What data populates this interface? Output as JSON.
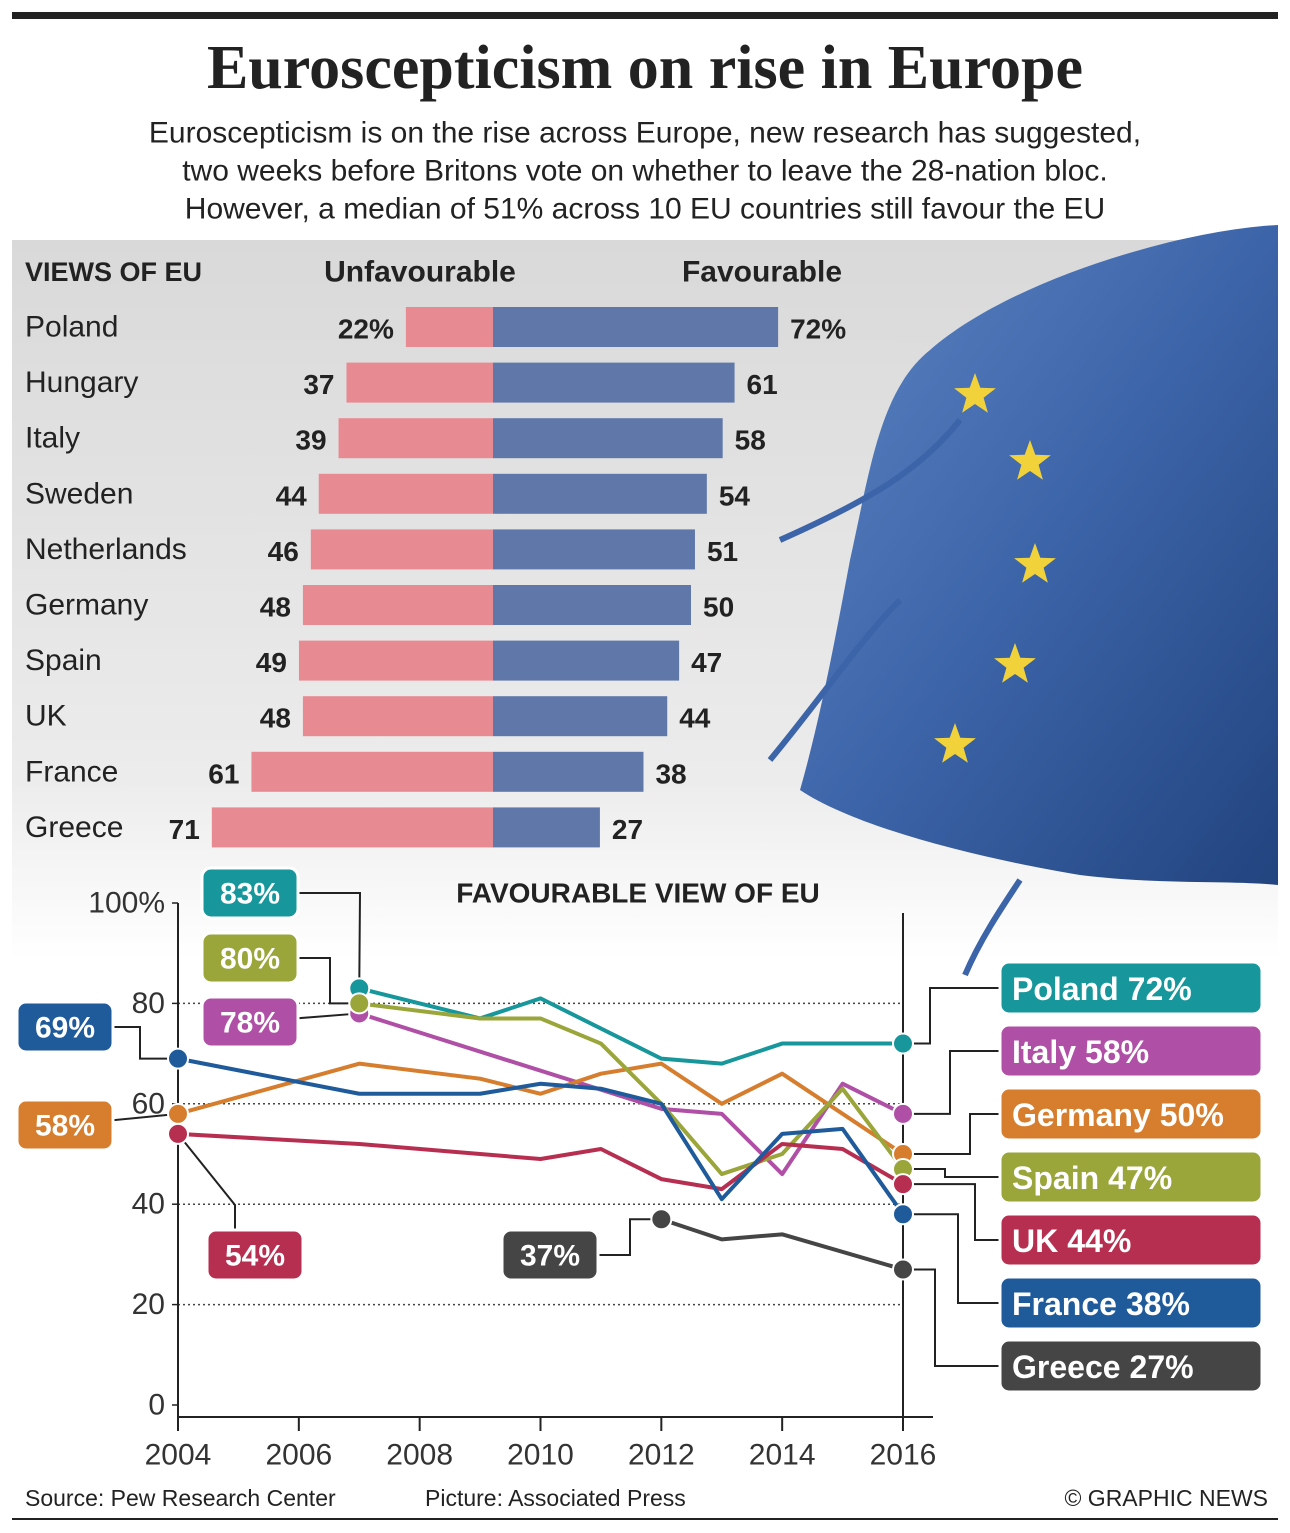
{
  "title": "Euroscepticism on rise in Europe",
  "subtitle": [
    "Euroscepticism is on the rise across Europe, new research has suggested,",
    "two weeks before Britons vote on whether to leave the 28-nation bloc.",
    "However, a median of 51% across 10 EU countries still favour the EU"
  ],
  "chart_data": [
    {
      "type": "bar",
      "title": "VIEWS OF EU",
      "categories": [
        "Poland",
        "Hungary",
        "Italy",
        "Sweden",
        "Netherlands",
        "Germany",
        "Spain",
        "UK",
        "France",
        "Greece"
      ],
      "series": [
        {
          "name": "Unfavourable",
          "color": "#e88a92",
          "values": [
            22,
            37,
            39,
            44,
            46,
            48,
            49,
            48,
            61,
            71
          ],
          "value_labels": [
            "22%",
            "37",
            "39",
            "44",
            "46",
            "48",
            "49",
            "48",
            "61",
            "71"
          ]
        },
        {
          "name": "Favourable",
          "color": "#5f78a9",
          "values": [
            72,
            61,
            58,
            54,
            51,
            50,
            47,
            44,
            38,
            27
          ],
          "value_labels": [
            "72%",
            "61",
            "58",
            "54",
            "51",
            "50",
            "47",
            "44",
            "38",
            "27"
          ]
        }
      ]
    },
    {
      "type": "line",
      "title": "FAVOURABLE VIEW OF EU",
      "xlim": [
        2004,
        2016
      ],
      "xticks": [
        2004,
        2006,
        2008,
        2010,
        2012,
        2014,
        2016
      ],
      "ylim": [
        0,
        100
      ],
      "yticks": [
        0,
        20,
        40,
        60,
        80,
        {
          "value": 100,
          "label": "100%"
        }
      ],
      "grid": true,
      "series": [
        {
          "name": "Poland",
          "color": "#17979c",
          "x": [
            2007,
            2009,
            2010,
            2012,
            2013,
            2014,
            2015,
            2016
          ],
          "values": [
            83,
            77,
            81,
            69,
            68,
            72,
            72,
            72
          ],
          "value_labels": [
            "83%",
            null,
            null,
            null,
            null,
            null,
            null,
            "72%"
          ]
        },
        {
          "name": "Italy",
          "color": "#b04fa6",
          "x": [
            2007,
            2012,
            2013,
            2014,
            2015,
            2016
          ],
          "values": [
            78,
            59,
            58,
            46,
            64,
            58
          ],
          "value_labels": [
            "78%",
            null,
            null,
            null,
            null,
            "58%"
          ]
        },
        {
          "name": "Germany",
          "color": "#d67d2e",
          "x": [
            2004,
            2007,
            2009,
            2010,
            2011,
            2012,
            2013,
            2014,
            2015,
            2016
          ],
          "values": [
            58,
            68,
            65,
            62,
            66,
            68,
            60,
            66,
            58,
            50
          ],
          "value_labels": [
            "58%",
            null,
            null,
            null,
            null,
            null,
            null,
            null,
            null,
            "50%"
          ]
        },
        {
          "name": "Spain",
          "color": "#9aa53a",
          "x": [
            2007,
            2009,
            2010,
            2011,
            2012,
            2013,
            2014,
            2015,
            2016
          ],
          "values": [
            80,
            77,
            77,
            72,
            60,
            46,
            50,
            63,
            47
          ],
          "value_labels": [
            "80%",
            null,
            null,
            null,
            null,
            null,
            null,
            null,
            "47%"
          ]
        },
        {
          "name": "UK",
          "color": "#b72f50",
          "x": [
            2004,
            2007,
            2009,
            2010,
            2011,
            2012,
            2013,
            2014,
            2015,
            2016
          ],
          "values": [
            54,
            52,
            50,
            49,
            51,
            45,
            43,
            52,
            51,
            44
          ],
          "value_labels": [
            "54%",
            null,
            null,
            null,
            null,
            null,
            null,
            null,
            null,
            "44%"
          ]
        },
        {
          "name": "France",
          "color": "#1f5a9b",
          "x": [
            2004,
            2007,
            2009,
            2010,
            2011,
            2012,
            2013,
            2014,
            2015,
            2016
          ],
          "values": [
            69,
            62,
            62,
            64,
            63,
            60,
            41,
            54,
            55,
            38
          ],
          "value_labels": [
            "69%",
            null,
            null,
            null,
            null,
            null,
            null,
            null,
            null,
            "38%"
          ]
        },
        {
          "name": "Greece",
          "color": "#454545",
          "x": [
            2012,
            2013,
            2014,
            2016
          ],
          "values": [
            37,
            33,
            34,
            27
          ],
          "value_labels": [
            "37%",
            null,
            null,
            "27%"
          ]
        }
      ]
    }
  ],
  "source": "Source: Pew Research Center",
  "picture_credit": "Picture: Associated Press",
  "credit": "© GRAPHIC NEWS"
}
